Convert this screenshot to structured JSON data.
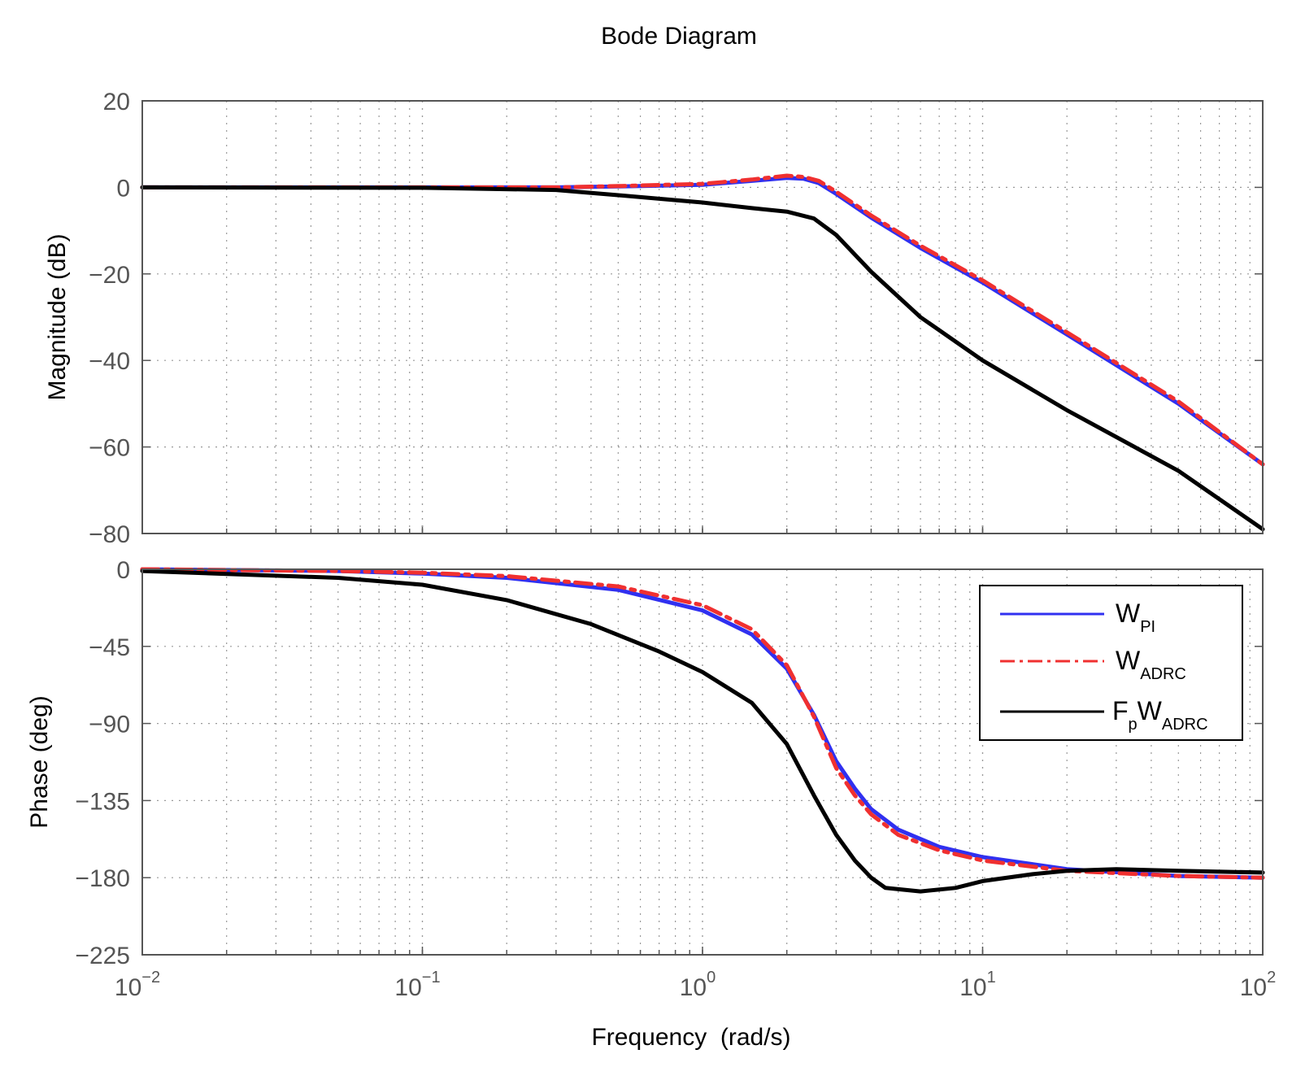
{
  "chart_data": [
    {
      "type": "line",
      "title": "Bode Diagram",
      "panel": "magnitude",
      "ylabel": "Magnitude (dB)",
      "xlabel": "",
      "xscale": "log",
      "xlim": [
        0.01,
        100
      ],
      "ylim": [
        -80,
        20
      ],
      "yticks": [
        20,
        0,
        -20,
        -40,
        -60,
        -80
      ],
      "ytick_labels": [
        "20",
        "0",
        "−20",
        "−40",
        "−60",
        "−80"
      ],
      "grid": true,
      "series": [
        {
          "name": "W_PI",
          "style": "solid",
          "color": "#3030f0",
          "x": [
            0.01,
            0.1,
            0.3,
            0.5,
            1.0,
            1.5,
            2.0,
            2.3,
            2.6,
            3.0,
            4.0,
            6.0,
            10,
            20,
            50,
            100
          ],
          "y": [
            0,
            0,
            0,
            0.2,
            0.6,
            1.5,
            2.2,
            2.0,
            1.0,
            -1.5,
            -7,
            -14,
            -22,
            -34,
            -50,
            -64
          ]
        },
        {
          "name": "W_ADRC",
          "style": "dashdot",
          "color": "#f03030",
          "x": [
            0.01,
            0.1,
            0.3,
            0.5,
            1.0,
            1.5,
            2.0,
            2.3,
            2.6,
            3.0,
            4.0,
            6.0,
            10,
            20,
            50,
            100
          ],
          "y": [
            0,
            0,
            0,
            0.3,
            0.8,
            1.8,
            2.7,
            2.4,
            1.5,
            -1.0,
            -6.5,
            -13.5,
            -21.5,
            -33.5,
            -49.5,
            -64
          ]
        },
        {
          "name": "F_pW_ADRC",
          "style": "solid",
          "color": "#000000",
          "x": [
            0.01,
            0.1,
            0.3,
            0.5,
            1.0,
            1.5,
            2.0,
            2.5,
            3.0,
            4.0,
            6.0,
            10,
            20,
            50,
            100
          ],
          "y": [
            0,
            -0.1,
            -0.6,
            -1.8,
            -3.5,
            -4.8,
            -5.6,
            -7.2,
            -11.0,
            -19.5,
            -30.0,
            -40.0,
            -51.5,
            -65.5,
            -79
          ]
        }
      ]
    },
    {
      "type": "line",
      "panel": "phase",
      "ylabel": "Phase (deg)",
      "xlabel": "Frequency  (rad/s)",
      "xscale": "log",
      "xlim": [
        0.01,
        100
      ],
      "ylim": [
        -225,
        0
      ],
      "yticks": [
        0,
        -45,
        -90,
        -135,
        -180,
        -225
      ],
      "ytick_labels": [
        "0",
        "−45",
        "−90",
        "−135",
        "−180",
        "−225"
      ],
      "xtick_bases": [
        "10",
        "10",
        "10",
        "10",
        "10"
      ],
      "xtick_exps": [
        "−2",
        "−1",
        "0",
        "1",
        "2"
      ],
      "grid": true,
      "legend": "top-right",
      "series": [
        {
          "name": "W_PI",
          "style": "solid",
          "color": "#3030f0",
          "x": [
            0.01,
            0.05,
            0.1,
            0.2,
            0.5,
            1.0,
            1.5,
            2.0,
            2.5,
            3.0,
            3.5,
            4.0,
            5.0,
            7.0,
            10,
            20,
            50,
            100
          ],
          "y": [
            0,
            -1,
            -2.5,
            -5,
            -12,
            -24,
            -38,
            -58,
            -85,
            -112,
            -128,
            -140,
            -152,
            -162,
            -168,
            -175,
            -179,
            -180
          ]
        },
        {
          "name": "W_ADRC",
          "style": "dashdot",
          "color": "#f03030",
          "x": [
            0.01,
            0.05,
            0.1,
            0.2,
            0.5,
            1.0,
            1.5,
            2.0,
            2.5,
            3.0,
            3.5,
            4.0,
            5.0,
            7.0,
            10,
            20,
            50,
            100
          ],
          "y": [
            0,
            -1,
            -2,
            -4,
            -10,
            -21,
            -35,
            -56,
            -86,
            -116,
            -132,
            -143,
            -155,
            -164,
            -170,
            -176,
            -179,
            -180
          ]
        },
        {
          "name": "F_pW_ADRC",
          "style": "solid",
          "color": "#000000",
          "x": [
            0.01,
            0.05,
            0.1,
            0.2,
            0.4,
            0.7,
            1.0,
            1.5,
            2.0,
            2.5,
            3.0,
            3.5,
            4.0,
            4.5,
            6.0,
            8.0,
            10,
            15,
            20,
            30,
            50,
            100
          ],
          "y": [
            -1,
            -5,
            -9,
            -18,
            -32,
            -48,
            -60,
            -78,
            -102,
            -132,
            -155,
            -170,
            -180,
            -186,
            -188,
            -186,
            -182,
            -178,
            -176,
            -175,
            -176,
            -177
          ]
        }
      ]
    }
  ],
  "legend": {
    "items": [
      {
        "base": "W",
        "sub": "PI",
        "style": "solid",
        "color": "#3030f0"
      },
      {
        "base": "W",
        "sub": "ADRC",
        "style": "dashdot",
        "color": "#f03030"
      },
      {
        "base": "F",
        "sub": "p",
        "base2": "W",
        "sub2": "ADRC",
        "style": "solid",
        "color": "#000000"
      }
    ]
  }
}
